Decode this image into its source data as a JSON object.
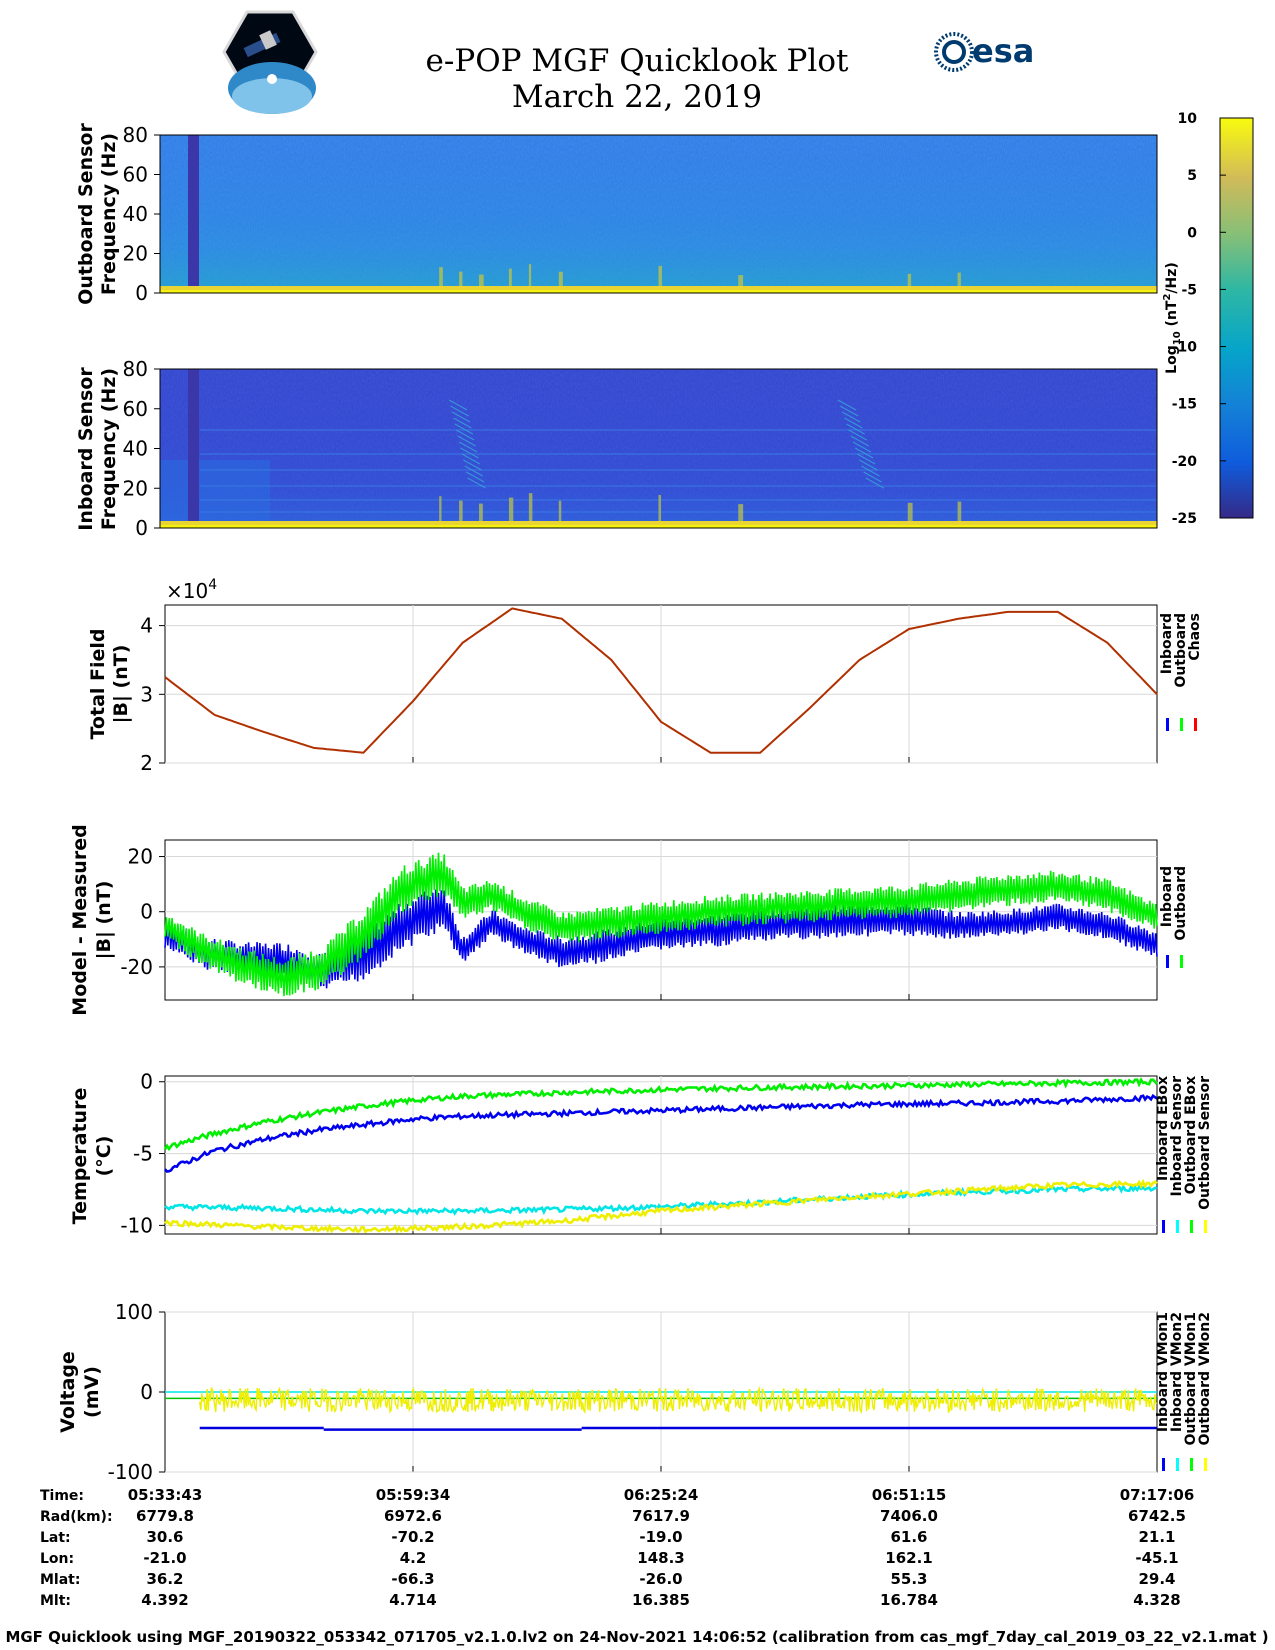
{
  "title": "e-POP MGF Quicklook Plot",
  "subtitle": "March 22, 2019",
  "logos": {
    "left": "e-POP mission logo",
    "right_text": "esa"
  },
  "colorbar": {
    "label_base": "Log",
    "label_sub": "10",
    "label_unit": "(nT",
    "label_sup": "2",
    "label_end": "/Hz)",
    "range": [
      -25,
      10
    ],
    "ticks": [
      "10",
      "5",
      "0",
      "-5",
      "-10",
      "-15",
      "-20",
      "-25"
    ],
    "colormap": "parula"
  },
  "chart_data": [
    {
      "type": "heatmap",
      "id": "outboard-spectrogram",
      "ylabel_line1": "Outboard Sensor",
      "ylabel_line2": "Frequency (Hz)",
      "ylim": [
        0,
        80
      ],
      "yticks": [
        "0",
        "20",
        "40",
        "60",
        "80"
      ],
      "background_level": -12,
      "gap_x_fraction": [
        0.024,
        0.035
      ],
      "note": ""
    },
    {
      "type": "heatmap",
      "id": "inboard-spectrogram",
      "ylabel_line1": "Inboard Sensor",
      "ylabel_line2": "Frequency (Hz)",
      "ylim": [
        0,
        80
      ],
      "yticks": [
        "0",
        "20",
        "40",
        "60",
        "80"
      ],
      "background_level": -19
    },
    {
      "type": "line",
      "id": "total-field",
      "ylabel_line1": "Total Field",
      "ylabel_line2": "|B| (nT)",
      "exponent_label": "×10",
      "exponent_sup": "4",
      "ylim": [
        2,
        4.3
      ],
      "yticks": [
        "2",
        "3",
        "4"
      ],
      "legend": [
        "Inboard",
        "Outboard",
        "Chaos"
      ],
      "legend_colors": [
        "#0000ff",
        "#00ff00",
        "#ff0000"
      ],
      "line_color": "#b03000",
      "x": [
        0,
        0.05,
        0.1,
        0.15,
        0.2,
        0.25,
        0.3,
        0.35,
        0.4,
        0.45,
        0.5,
        0.55,
        0.6,
        0.65,
        0.7,
        0.75,
        0.8,
        0.85,
        0.9,
        0.95,
        1.0
      ],
      "values": [
        3.25,
        2.7,
        2.45,
        2.22,
        2.15,
        2.9,
        3.75,
        4.25,
        4.1,
        3.5,
        2.6,
        2.15,
        2.15,
        2.8,
        3.5,
        3.95,
        4.1,
        4.2,
        4.2,
        3.75,
        3.0
      ]
    },
    {
      "type": "line",
      "id": "model-minus-measured",
      "ylabel_line1": "Model - Measured",
      "ylabel_line2": "|B| (nT)",
      "ylim": [
        -32,
        26
      ],
      "yticks": [
        "-20",
        "0",
        "20"
      ],
      "legend": [
        "Inboard",
        "Outboard"
      ],
      "legend_colors": [
        "#0000ff",
        "#00ff00"
      ],
      "series": [
        {
          "color": "#0000ee",
          "x": [
            0,
            0.04,
            0.08,
            0.12,
            0.16,
            0.2,
            0.24,
            0.28,
            0.3,
            0.33,
            0.36,
            0.4,
            0.45,
            0.5,
            0.55,
            0.6,
            0.65,
            0.7,
            0.75,
            0.8,
            0.85,
            0.9,
            0.95,
            1.0
          ],
          "center": [
            -8,
            -15,
            -17,
            -18,
            -22,
            -16,
            -5,
            2,
            -14,
            -4,
            -10,
            -15,
            -12,
            -8,
            -7,
            -5,
            -4,
            -3,
            -3,
            -5,
            -4,
            -2,
            -5,
            -12
          ],
          "half_width": [
            6,
            6,
            6,
            7,
            7,
            9,
            9,
            9,
            5,
            5,
            5,
            6,
            6,
            6,
            6,
            6,
            6,
            6,
            6,
            5,
            5,
            5,
            5,
            5
          ]
        },
        {
          "color": "#00ee00",
          "x": [
            0,
            0.04,
            0.08,
            0.12,
            0.16,
            0.2,
            0.24,
            0.28,
            0.3,
            0.33,
            0.36,
            0.4,
            0.45,
            0.5,
            0.55,
            0.6,
            0.65,
            0.7,
            0.75,
            0.8,
            0.85,
            0.9,
            0.95,
            1.0
          ],
          "center": [
            -5,
            -14,
            -20,
            -24,
            -20,
            -8,
            8,
            14,
            3,
            6,
            0,
            -6,
            -4,
            -2,
            0,
            1,
            2,
            3,
            4,
            6,
            8,
            9,
            6,
            -2
          ],
          "half_width": [
            5,
            6,
            7,
            7,
            8,
            9,
            9,
            8,
            6,
            6,
            6,
            6,
            6,
            6,
            6,
            6,
            6,
            6,
            6,
            6,
            6,
            6,
            6,
            5
          ]
        }
      ]
    },
    {
      "type": "line",
      "id": "temperature",
      "ylabel_line1": "Temperature",
      "ylabel_line2": "(°C)",
      "ylim": [
        -10.6,
        0.4
      ],
      "yticks": [
        "-10",
        "-5",
        "0"
      ],
      "legend": [
        "Inboard EBox",
        "Inboard Sensor",
        "Outboard EBox",
        "Outboard Sensor"
      ],
      "legend_colors": [
        "#0000ff",
        "#00ffff",
        "#00ff00",
        "#ffff00"
      ],
      "series": [
        {
          "color": "#00ee00",
          "x": [
            0,
            0.05,
            0.1,
            0.15,
            0.2,
            0.25,
            0.3,
            0.4,
            0.5,
            0.6,
            0.7,
            0.8,
            0.9,
            1.0
          ],
          "values": [
            -4.6,
            -3.6,
            -2.8,
            -2.2,
            -1.7,
            -1.3,
            -1.0,
            -0.75,
            -0.55,
            -0.4,
            -0.3,
            -0.2,
            -0.1,
            0.0
          ]
        },
        {
          "color": "#0000ee",
          "x": [
            0,
            0.05,
            0.1,
            0.15,
            0.2,
            0.25,
            0.3,
            0.4,
            0.5,
            0.6,
            0.7,
            0.8,
            0.9,
            1.0
          ],
          "values": [
            -6.2,
            -4.8,
            -4.0,
            -3.4,
            -3.0,
            -2.6,
            -2.4,
            -2.2,
            -2.0,
            -1.8,
            -1.6,
            -1.5,
            -1.35,
            -1.1
          ]
        },
        {
          "color": "#00e5e5",
          "x": [
            0,
            0.1,
            0.2,
            0.3,
            0.4,
            0.5,
            0.6,
            0.7,
            0.8,
            0.9,
            1.0
          ],
          "values": [
            -8.7,
            -8.8,
            -9.0,
            -9.0,
            -8.9,
            -8.7,
            -8.4,
            -8.0,
            -7.7,
            -7.5,
            -7.4
          ]
        },
        {
          "color": "#eeee00",
          "x": [
            0,
            0.1,
            0.2,
            0.3,
            0.4,
            0.5,
            0.6,
            0.7,
            0.8,
            0.9,
            1.0
          ],
          "values": [
            -9.8,
            -10.1,
            -10.3,
            -10.1,
            -9.7,
            -9.0,
            -8.5,
            -8.0,
            -7.6,
            -7.2,
            -7.1
          ]
        }
      ]
    },
    {
      "type": "line",
      "id": "voltage",
      "ylabel_line1": "Voltage",
      "ylabel_line2": "(mV)",
      "ylim": [
        -100,
        100
      ],
      "yticks": [
        "-100",
        "0",
        "100"
      ],
      "legend": [
        "Inboard VMon1",
        "Inboard VMon2",
        "Outboard VMon1",
        "Outboard VMon2"
      ],
      "legend_colors": [
        "#0000ff",
        "#00ffff",
        "#00ff00",
        "#ffff00"
      ],
      "series": [
        {
          "color": "#0000dd",
          "segments": [
            [
              0.035,
              0.16,
              -45
            ],
            [
              0.16,
              0.42,
              -47
            ],
            [
              0.42,
              1.0,
              -45
            ]
          ]
        },
        {
          "color": "#00e5e5",
          "segments": [
            [
              0.0,
              1.0,
              0
            ]
          ]
        },
        {
          "color": "#00c000",
          "segments": [
            [
              0.0,
              1.0,
              -8
            ]
          ]
        },
        {
          "color": "#eeee00",
          "band": [
            -25,
            5
          ]
        }
      ]
    }
  ],
  "time_ticks": [
    "05:33:43",
    "05:59:34",
    "06:25:24",
    "06:51:15",
    "07:17:06"
  ],
  "ephemeris": [
    {
      "label": "Time:",
      "values": [
        "05:33:43",
        "05:59:34",
        "06:25:24",
        "06:51:15",
        "07:17:06"
      ]
    },
    {
      "label": "Rad(km):",
      "values": [
        "6779.8",
        "6972.6",
        "7617.9",
        "7406.0",
        "6742.5"
      ]
    },
    {
      "label": "Lat:",
      "values": [
        "30.6",
        "-70.2",
        "-19.0",
        "61.6",
        "21.1"
      ]
    },
    {
      "label": "Lon:",
      "values": [
        "-21.0",
        "4.2",
        "148.3",
        "162.1",
        "-45.1"
      ]
    },
    {
      "label": "Mlat:",
      "values": [
        "36.2",
        "-66.3",
        "-26.0",
        "55.3",
        "29.4"
      ]
    },
    {
      "label": "Mlt:",
      "values": [
        "4.392",
        "4.714",
        "16.385",
        "16.784",
        "4.328"
      ]
    }
  ],
  "footer": "MGF Quicklook using MGF_20190322_053342_071705_v2.1.0.lv2 on 24-Nov-2021 14:06:52 (calibration from cas_mgf_7day_cal_2019_03_22_v2.1.mat )"
}
